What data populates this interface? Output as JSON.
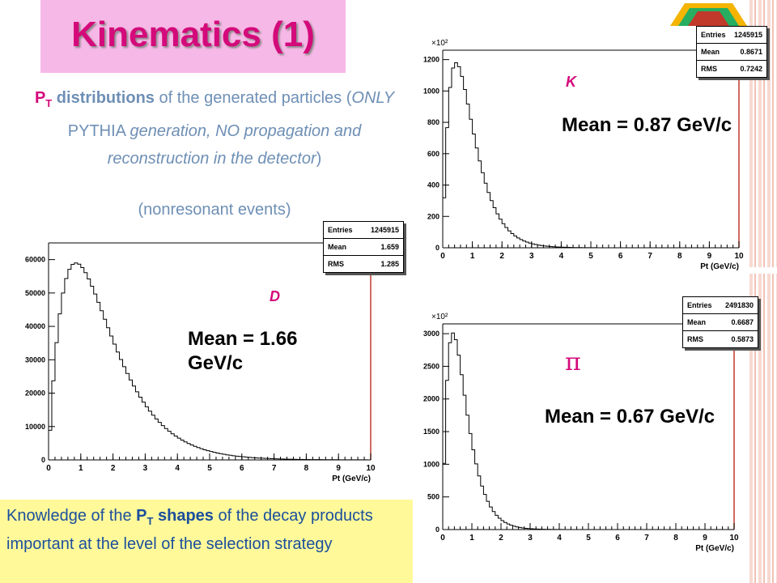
{
  "title": "Kinematics (1)",
  "description": {
    "pt_symbol": "P",
    "pt_sub": "T",
    "part1": " distributions",
    "part2": " of the generated particles (",
    "only": "ONLY",
    "part3": " PYTHIA ",
    "generation": "generation, NO propagation and reconstruction in the detector",
    "close": ")"
  },
  "nonresonant": "(nonresonant events)",
  "knowledge": {
    "part1": "Knowledge of the ",
    "pt": "P",
    "pt_sub": "T",
    "bold": " shapes",
    "part2": " of the decay products important at the level of the selection strategy"
  },
  "colors": {
    "accent": "#d40a7b",
    "title_bg": "#f6b8e6",
    "text_blue": "#6e8fb5",
    "note_bg": "#fff99a",
    "hist_line": "#000000",
    "frame_right": "#c0392b"
  },
  "panels": {
    "D": {
      "particle_label": "D",
      "mean_text_line1": "Mean = 1.66",
      "mean_text_line2": "GeV/c",
      "stats": {
        "entries_label": "Entries",
        "entries": "1245915",
        "mean_label": "Mean",
        "mean": "1.659",
        "rms_label": "RMS",
        "rms": "1.285"
      },
      "xlabel": "Pt (GeV/c)",
      "multiplier": "",
      "y_ticks": [
        "0",
        "10000",
        "20000",
        "30000",
        "40000",
        "50000",
        "60000"
      ]
    },
    "K": {
      "particle_label": "K",
      "mean_text": "Mean = 0.87 GeV/c",
      "stats": {
        "entries_label": "Entries",
        "entries": "1245915",
        "mean_label": "Mean",
        "mean": "0.8671",
        "rms_label": "RMS",
        "rms": "0.7242"
      },
      "xlabel": "Pt (GeV/c)",
      "multiplier": "×10²",
      "y_ticks": [
        "0",
        "200",
        "400",
        "600",
        "800",
        "1000",
        "1200"
      ]
    },
    "pi": {
      "particle_label": "π",
      "mean_text": "Mean = 0.67 GeV/c",
      "stats": {
        "entries_label": "Entries",
        "entries": "2491830",
        "mean_label": "Mean",
        "mean": "0.6687",
        "rms_label": "RMS",
        "rms": "0.5873"
      },
      "xlabel": "Pt (GeV/c)",
      "multiplier": "×10²",
      "y_ticks": [
        "0",
        "500",
        "1000",
        "1500",
        "2000",
        "2500",
        "3000"
      ]
    }
  },
  "x_ticks": [
    "0",
    "1",
    "2",
    "3",
    "4",
    "5",
    "6",
    "7",
    "8",
    "9",
    "10"
  ],
  "chart_data": [
    {
      "type": "bar",
      "name": "D",
      "x_range": [
        0,
        10
      ],
      "ylim": [
        0,
        65000
      ],
      "peak_x": 0.85,
      "peak_y": 59000,
      "mean": 1.659,
      "rms": 1.285,
      "xlabel": "Pt (GeV/c)"
    },
    {
      "type": "bar",
      "name": "K",
      "x_range": [
        0,
        10
      ],
      "ylim": [
        0,
        1260
      ],
      "peak_x": 0.45,
      "peak_y": 1180,
      "mean": 0.8671,
      "rms": 0.7242,
      "xlabel": "Pt (GeV/c)",
      "y_scale_note": "×10²"
    },
    {
      "type": "bar",
      "name": "pi",
      "x_range": [
        0,
        10
      ],
      "ylim": [
        0,
        3150
      ],
      "peak_x": 0.35,
      "peak_y": 3010,
      "mean": 0.6687,
      "rms": 0.5873,
      "xlabel": "Pt (GeV/c)",
      "y_scale_note": "×10²"
    }
  ]
}
